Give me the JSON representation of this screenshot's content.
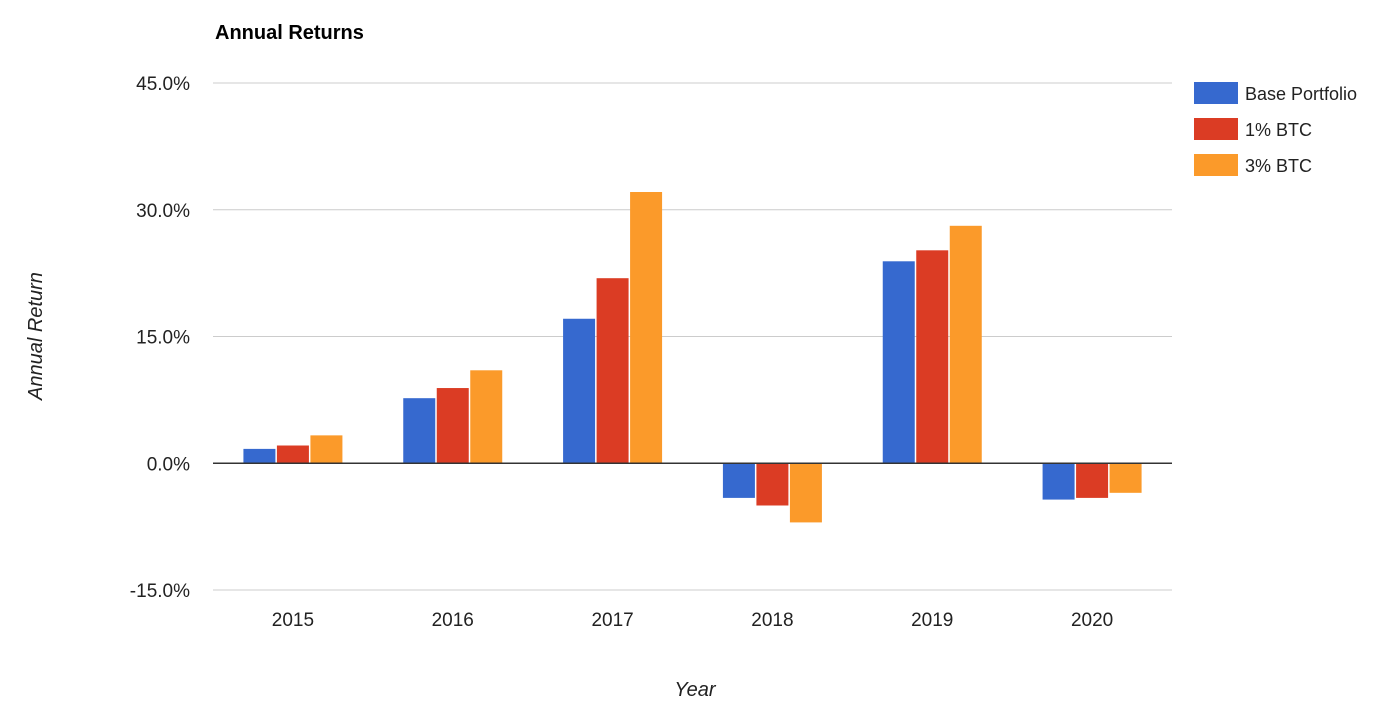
{
  "chart_data": {
    "type": "bar",
    "title": "Annual Returns",
    "xlabel": "Year",
    "ylabel": "Annual Return",
    "categories": [
      "2015",
      "2016",
      "2017",
      "2018",
      "2019",
      "2020"
    ],
    "series": [
      {
        "name": "Base Portfolio",
        "color": "#3669cf",
        "values": [
          1.7,
          7.7,
          17.1,
          -4.1,
          23.9,
          -4.3
        ]
      },
      {
        "name": "1% BTC",
        "color": "#db3c24",
        "values": [
          2.1,
          8.9,
          21.9,
          -5.0,
          25.2,
          -4.1
        ]
      },
      {
        "name": "3% BTC",
        "color": "#fb9a2a",
        "values": [
          3.3,
          11.0,
          32.1,
          -7.0,
          28.1,
          -3.5
        ]
      }
    ],
    "ylim": [
      -15,
      45
    ],
    "yticks": [
      -15,
      0,
      15,
      30,
      45
    ],
    "ytick_labels": [
      "-15.0%",
      "0.0%",
      "15.0%",
      "30.0%",
      "45.0%"
    ],
    "grid": true,
    "legend_position": "right"
  }
}
